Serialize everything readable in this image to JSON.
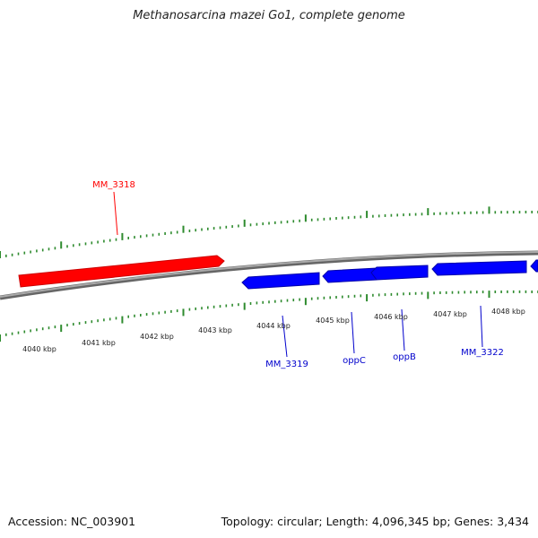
{
  "title": "Methanosarcina mazei Go1, complete genome",
  "footer": {
    "accession_text": "Accession: NC_003901",
    "summary_text": "Topology: circular; Length: 4,096,345 bp; Genes: 3,434"
  },
  "colors": {
    "backbone": "#888888",
    "tick": "#2e8b2e",
    "forward_gene": "#ff0000",
    "reverse_gene": "#0000ff"
  },
  "scale_labels": [
    "4040 kbp",
    "4041 kbp",
    "4042 kbp",
    "4043 kbp",
    "4044 kbp",
    "4045 kbp",
    "4046 kbp",
    "4047 kbp",
    "4048 kbp"
  ],
  "genes": [
    {
      "name": "MM_3318",
      "strand": "forward"
    },
    {
      "name": "MM_3319",
      "strand": "reverse"
    },
    {
      "name": "oppC",
      "strand": "reverse"
    },
    {
      "name": "oppB",
      "strand": "reverse"
    },
    {
      "name": "MM_3322",
      "strand": "reverse"
    }
  ]
}
